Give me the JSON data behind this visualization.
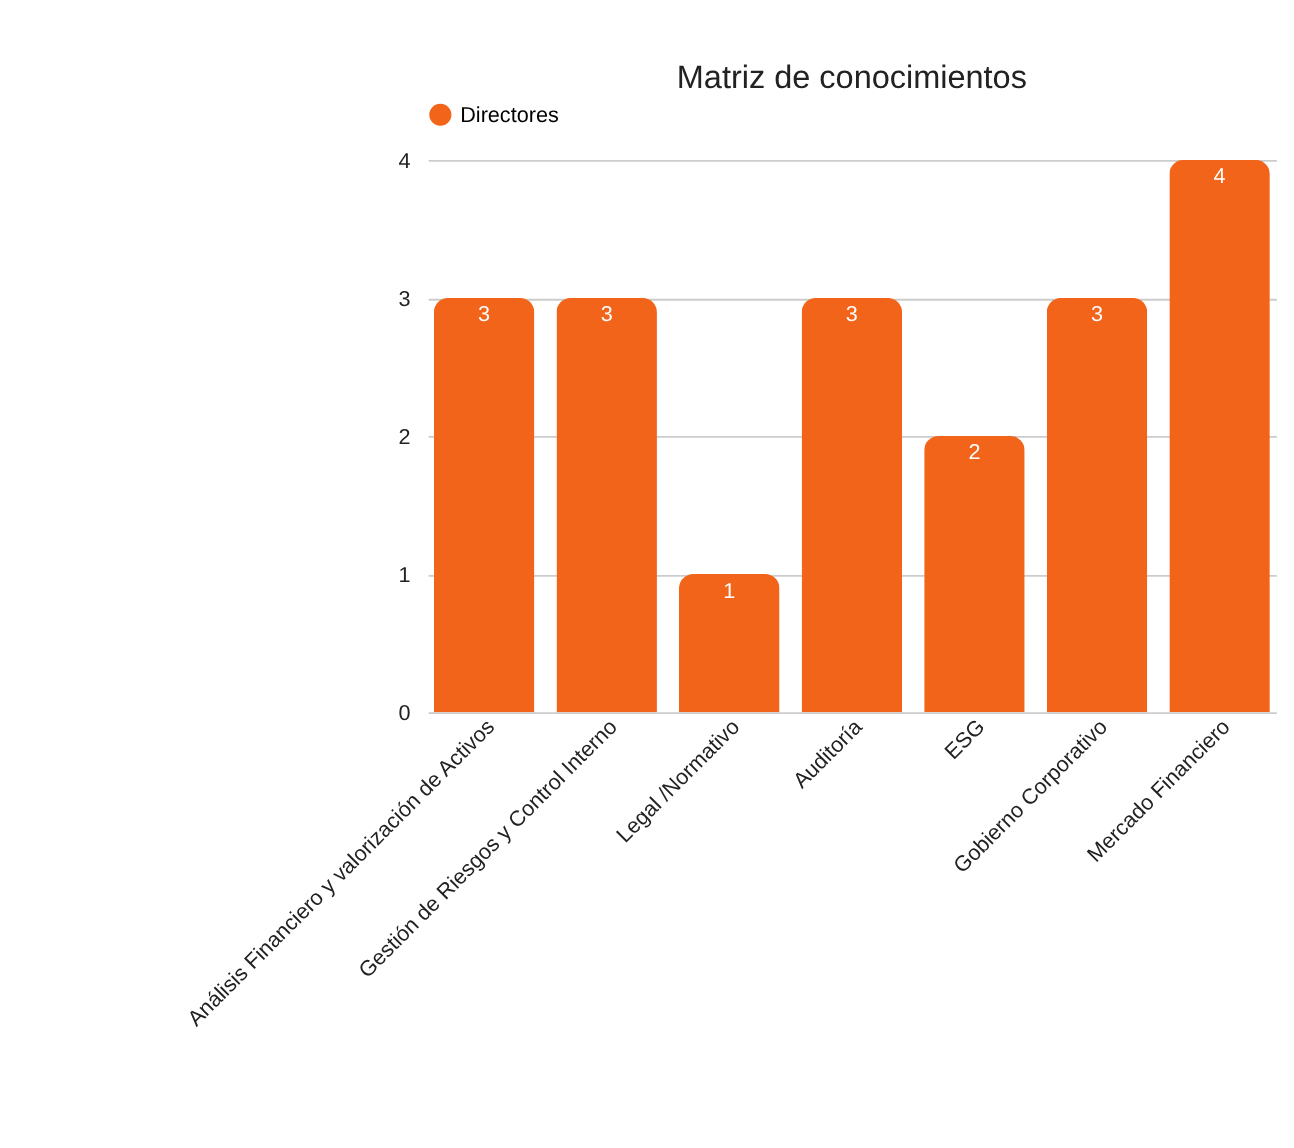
{
  "chart_data": {
    "type": "bar",
    "title": "Matriz de conocimientos",
    "categories": [
      "Análisis Financiero y valorización de Activos",
      "Gestión de Riesgos y Control Interno",
      "Legal /Normativo",
      "Auditoría",
      "ESG",
      "Gobierno Corporativo",
      "Mercado Financiero"
    ],
    "series": [
      {
        "name": "Directores",
        "color": "#f26419",
        "values": [
          3,
          3,
          1,
          3,
          2,
          3,
          4
        ]
      }
    ],
    "ylim": [
      0,
      4
    ],
    "yticks": [
      0,
      1,
      2,
      3,
      4
    ],
    "grid": "y",
    "legend": "top",
    "data_labels": true
  }
}
